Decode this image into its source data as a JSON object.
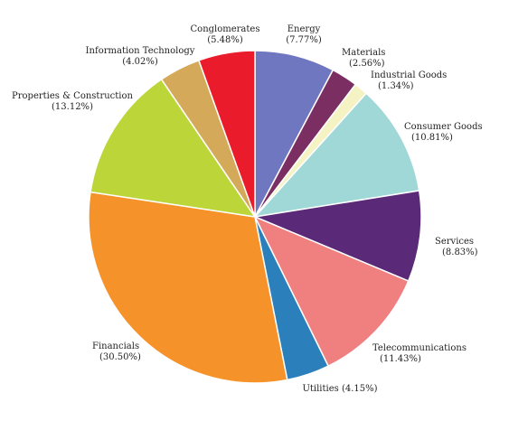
{
  "chart_data": {
    "type": "pie",
    "title": "",
    "legend": "none",
    "slices": [
      {
        "name": "Energy",
        "value_label": "(7.77%)",
        "value": 7.77,
        "color": "#6f77c0"
      },
      {
        "name": "Materials",
        "value_label": "(2.56%)",
        "value": 2.56,
        "color": "#7a2e62"
      },
      {
        "name": "Industrial Goods",
        "value_label": "(1.34%)",
        "value": 1.34,
        "color": "#f5f2c4"
      },
      {
        "name": "Consumer Goods",
        "value_label": "(10.81%)",
        "value": 10.81,
        "color": "#9fd8d6"
      },
      {
        "name": "Services",
        "value_label": "(8.83%)",
        "value": 8.83,
        "color": "#5a2a78"
      },
      {
        "name": "Telecommunications",
        "value_label": "(11.43%)",
        "value": 11.43,
        "color": "#f07f80"
      },
      {
        "name": "Utilities",
        "value_label": "(4.15%)",
        "value": 4.15,
        "color": "#2b7fba"
      },
      {
        "name": "Financials",
        "value_label": "(30.50%)",
        "value": 30.5,
        "color": "#f5932a"
      },
      {
        "name": "Properties & Construction",
        "value_label": "(13.12%)",
        "value": 13.12,
        "color": "#bcd63a"
      },
      {
        "name": "Information Technology",
        "value_label": "(4.02%)",
        "value": 4.02,
        "color": "#d4aa5a"
      },
      {
        "name": "Conglomerates",
        "value_label": "(5.48%)",
        "value": 5.48,
        "color": "#ea1c2b"
      }
    ]
  }
}
